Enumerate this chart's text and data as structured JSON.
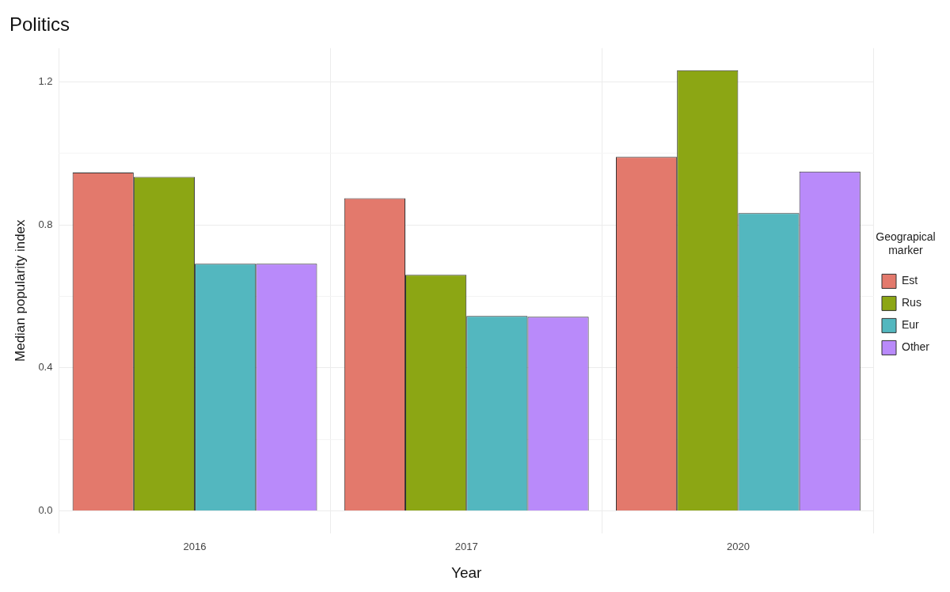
{
  "chart_data": {
    "type": "bar",
    "title": "Politics",
    "xlabel": "Year",
    "ylabel": "Median popularity index",
    "legend_title": "Geograpical marker",
    "categories": [
      "2016",
      "2017",
      "2020"
    ],
    "series": [
      {
        "name": "Est",
        "color": "#e3796c",
        "values": [
          0.946,
          0.874,
          0.99
        ]
      },
      {
        "name": "Rus",
        "color": "#8ca614",
        "values": [
          0.934,
          0.66,
          1.232
        ]
      },
      {
        "name": "Eur",
        "color": "#53b7bf",
        "values": [
          0.691,
          0.545,
          0.833
        ]
      },
      {
        "name": "Other",
        "color": "#b98afa",
        "values": [
          0.691,
          0.543,
          0.949
        ]
      }
    ],
    "ylim": [
      -0.062,
      1.294
    ],
    "yticks": [
      {
        "value": 0,
        "label": "0.0"
      },
      {
        "value": 0.2,
        "label": null
      },
      {
        "value": 0.4,
        "label": "0.4"
      },
      {
        "value": 0.6,
        "label": null
      },
      {
        "value": 0.8,
        "label": "0.8"
      },
      {
        "value": 1.0,
        "label": null
      },
      {
        "value": 1.2,
        "label": "1.2"
      }
    ],
    "grid": true,
    "legend": "right"
  }
}
